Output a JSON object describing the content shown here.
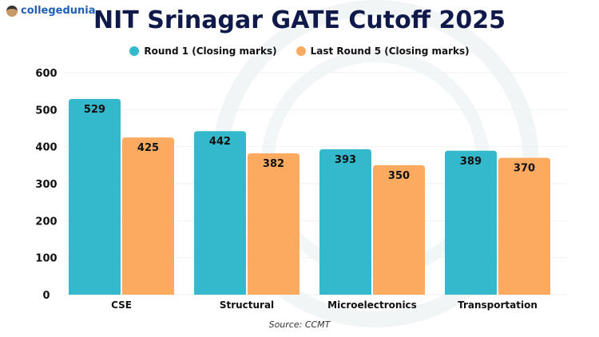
{
  "brand": "collegedunia",
  "chart_data": {
    "type": "bar",
    "title": "NIT Srinagar GATE Cutoff 2025",
    "categories": [
      "CSE",
      "Structural",
      "Microelectronics",
      "Transportation"
    ],
    "series": [
      {
        "name": "Round 1 (Closing marks)",
        "values": [
          529,
          442,
          393,
          389
        ],
        "color": "#33b9cb"
      },
      {
        "name": "Last Round 5 (Closing marks)",
        "values": [
          425,
          382,
          350,
          370
        ],
        "color": "#fcaa5f"
      }
    ],
    "ylim": [
      0,
      600
    ],
    "yticks": [
      0,
      100,
      200,
      300,
      400,
      500,
      600
    ],
    "grid": true,
    "legend": "top-center",
    "source": "Source: CCMT"
  }
}
